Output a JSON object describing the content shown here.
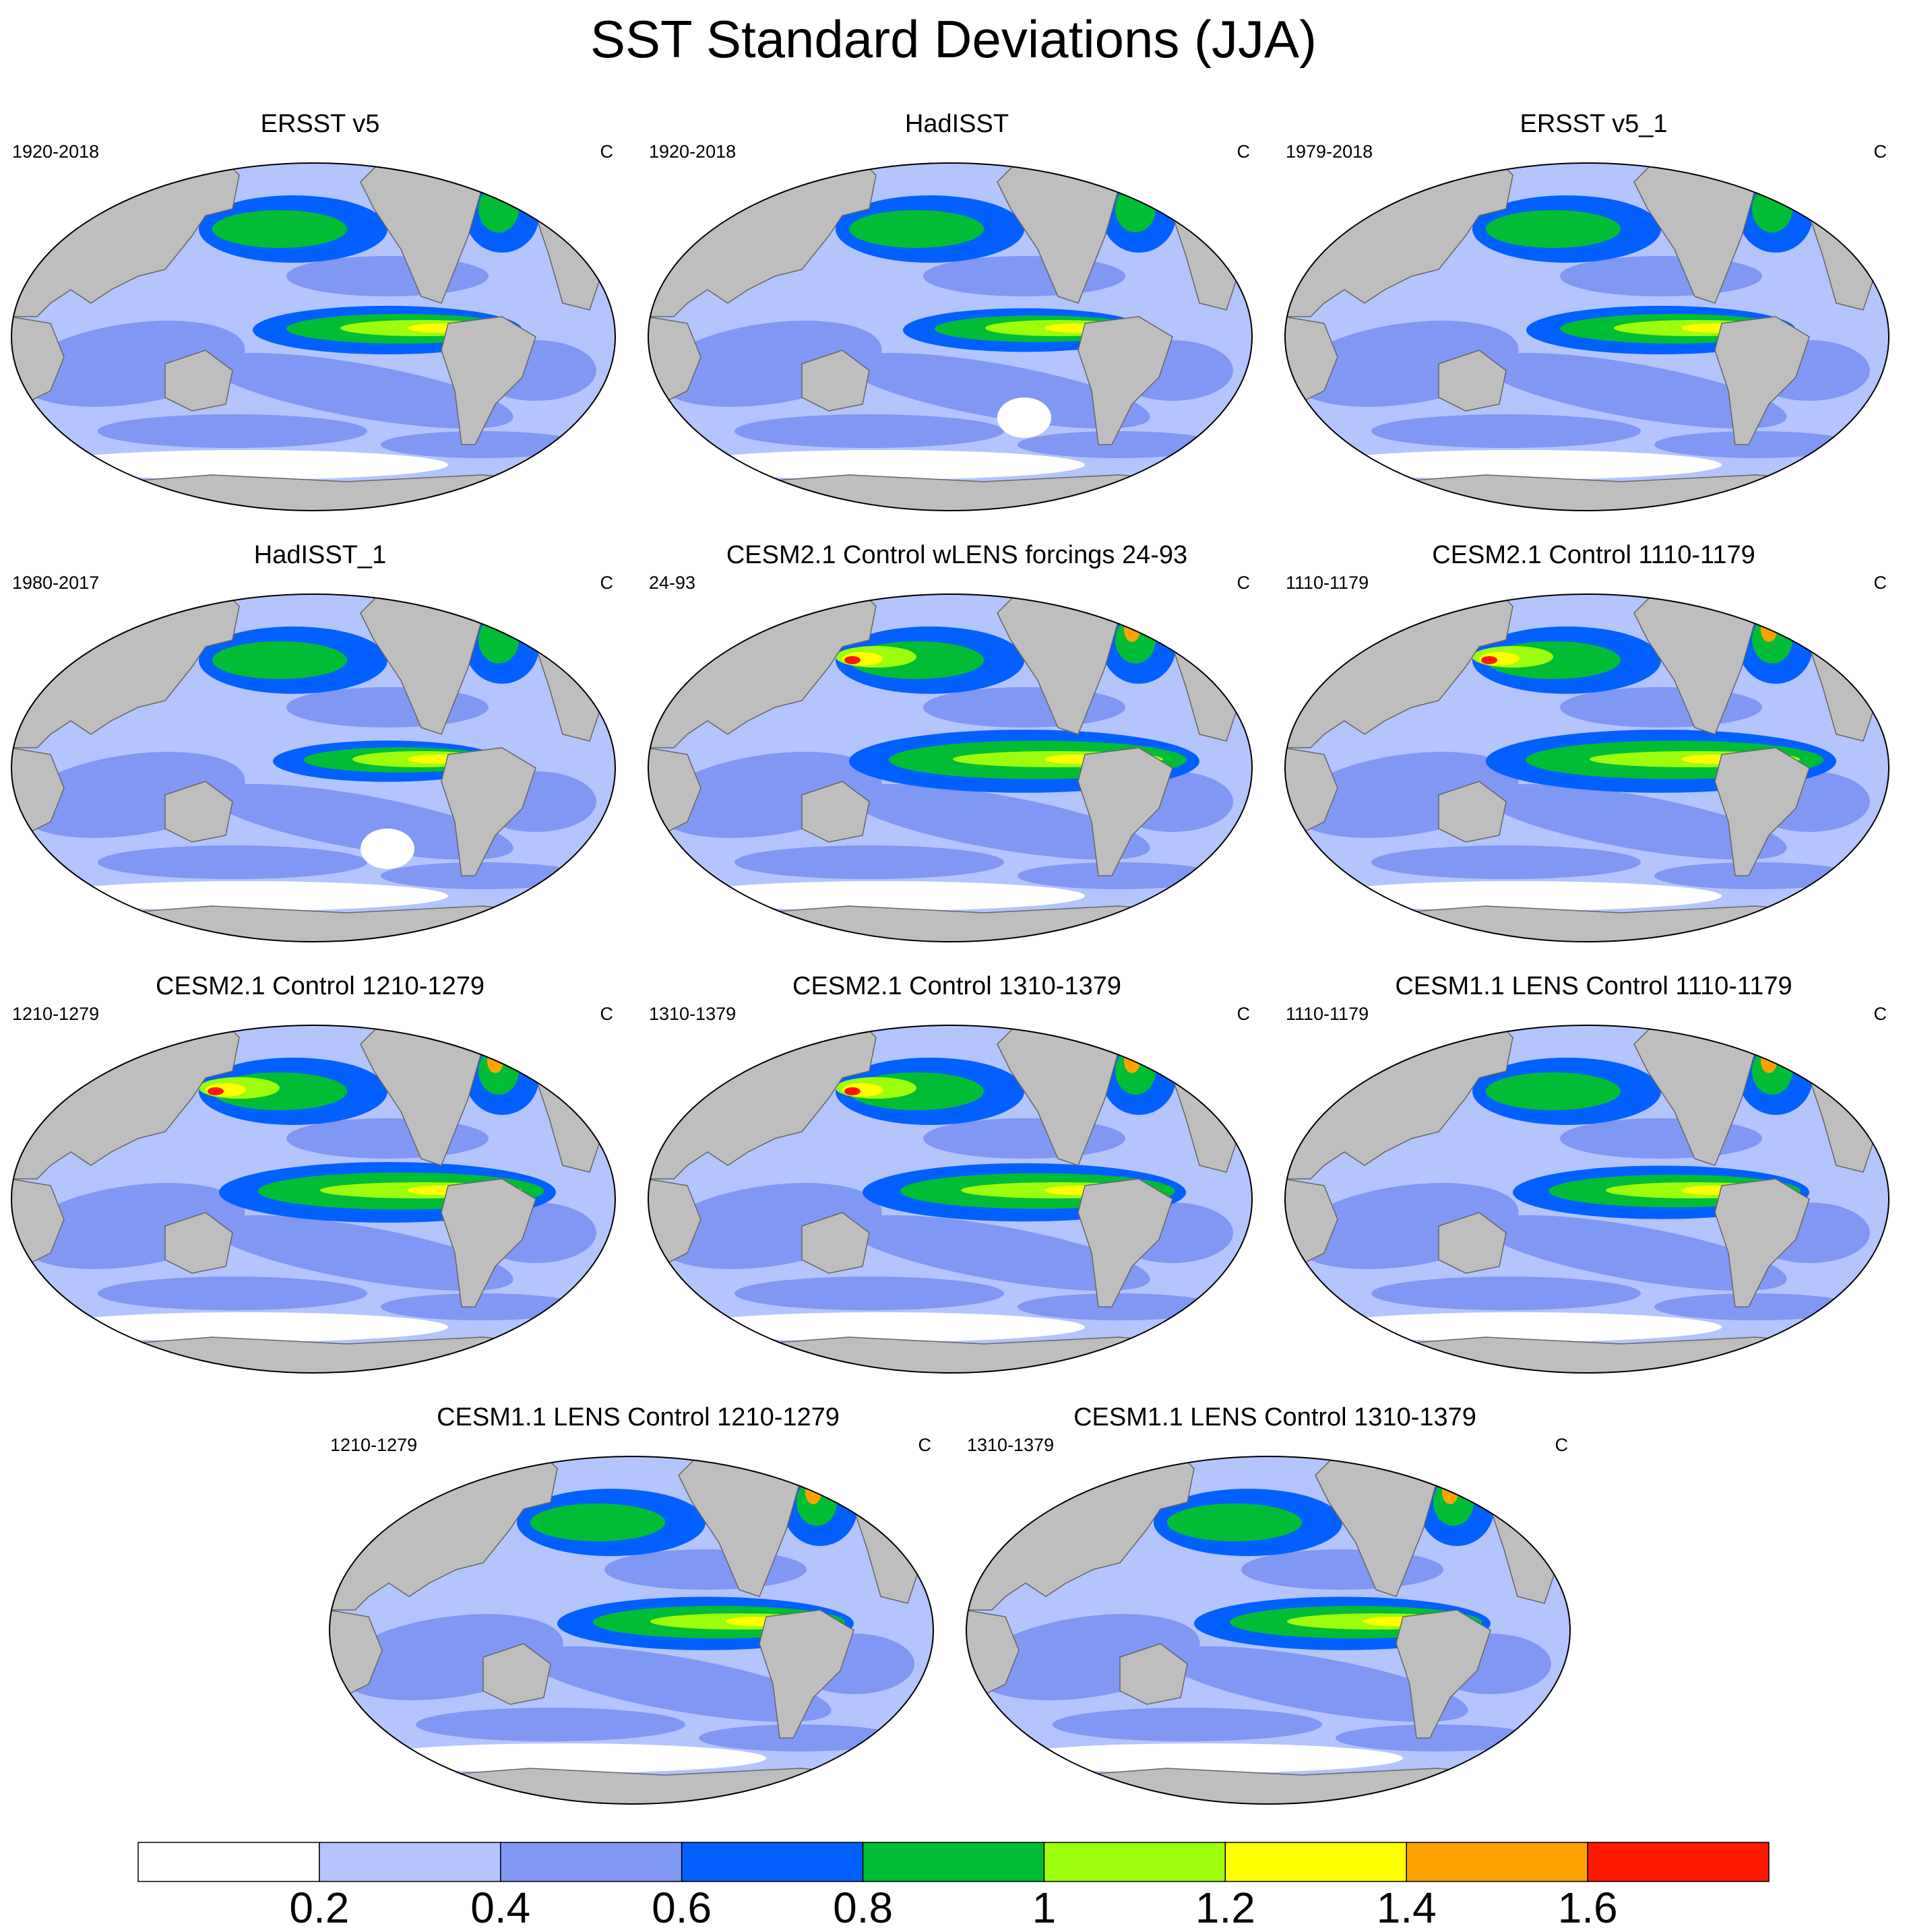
{
  "title": "SST Standard Deviations (JJA)",
  "units": "C",
  "colors": {
    "levels": [
      "#ffffff",
      "#b4c4fc",
      "#8097f4",
      "#0160ff",
      "#00bd35",
      "#9dfd0d",
      "#ffff00",
      "#ffa200",
      "#ff1800"
    ],
    "land": "#bebebe",
    "land_outline": "#666666",
    "frame": "#000000"
  },
  "colorbar": {
    "tick_labels": [
      "0.2",
      "0.4",
      "0.6",
      "0.8",
      "1",
      "1.2",
      "1.4",
      "1.6"
    ]
  },
  "panels": [
    {
      "title": "ERSST v5",
      "left": "1920-2018",
      "right": "C",
      "intensity": 1.0
    },
    {
      "title": "HadISST",
      "left": "1920-2018",
      "right": "C",
      "intensity": 0.9
    },
    {
      "title": "ERSST v5_1",
      "left": "1979-2018",
      "right": "C",
      "intensity": 1.0
    },
    {
      "title": "HadISST_1",
      "left": "1980-2017",
      "right": "C",
      "intensity": 0.85
    },
    {
      "title": "CESM2.1 Control wLENS forcings 24-93",
      "left": "24-93",
      "right": "C",
      "intensity": 1.3
    },
    {
      "title": "CESM2.1 Control 1110-1179",
      "left": "1110-1179",
      "right": "C",
      "intensity": 1.3
    },
    {
      "title": "CESM2.1 Control 1210-1279",
      "left": "1210-1279",
      "right": "C",
      "intensity": 1.25
    },
    {
      "title": "CESM2.1 Control 1310-1379",
      "left": "1310-1379",
      "right": "C",
      "intensity": 1.2
    },
    {
      "title": "CESM1.1 LENS Control 1110-1179",
      "left": "1110-1179",
      "right": "C",
      "intensity": 1.1
    },
    {
      "title": "CESM1.1 LENS Control 1210-1279",
      "left": "1210-1279",
      "right": "C",
      "intensity": 1.1
    },
    {
      "title": "CESM1.1 LENS Control 1310-1379",
      "left": "1310-1379",
      "right": "C",
      "intensity": 1.1
    }
  ]
}
